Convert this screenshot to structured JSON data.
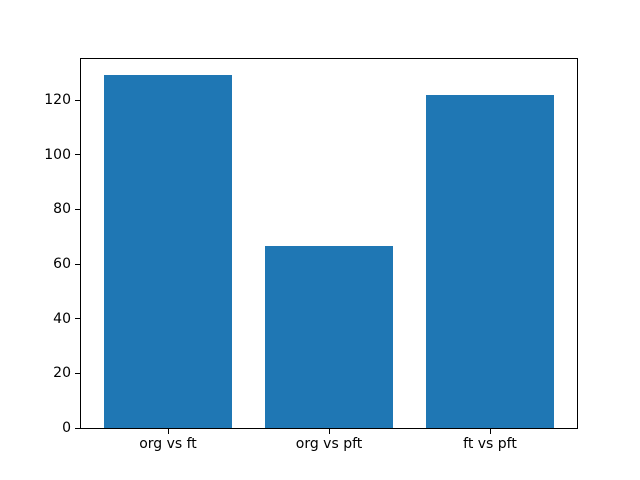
{
  "chart_data": {
    "type": "bar",
    "categories": [
      "org vs ft",
      "org vs pft",
      "ft vs pft"
    ],
    "values": [
      129,
      66.7,
      121.7
    ],
    "title": "",
    "xlabel": "",
    "ylabel": "",
    "ylim": [
      0,
      135
    ],
    "yticks": [
      0,
      20,
      40,
      60,
      80,
      100,
      120
    ],
    "bar_color": "#1f77b4",
    "axes_background": "#ffffff",
    "figure_background": "#ffffff",
    "grid": "off",
    "legend": "none"
  }
}
